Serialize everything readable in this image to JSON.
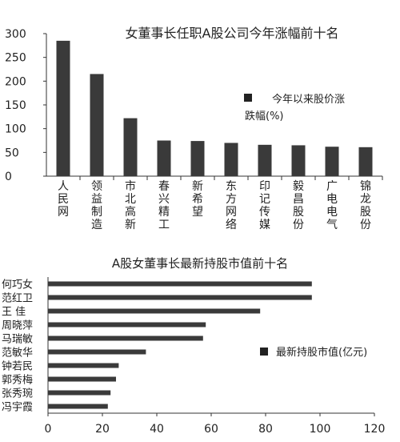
{
  "chart_data": [
    {
      "type": "bar",
      "title": "女董事长任职A股公司今年涨幅前十名",
      "legend": {
        "label": "今年以来股价涨跌幅(%)",
        "position": "right"
      },
      "xlabel": "",
      "ylabel": "",
      "ylim": [
        0,
        300
      ],
      "yticks": [
        "0",
        "50",
        "100",
        "150",
        "200",
        "250",
        "300"
      ],
      "grid": false,
      "categories": [
        "人民网",
        "领益制造",
        "市北高新",
        "春兴精工",
        "新希望",
        "东方网络",
        "印记传媒",
        "毅昌股份",
        "广电电气",
        "锦龙股份"
      ],
      "values": [
        285,
        215,
        122,
        75,
        74,
        70,
        66,
        65,
        62,
        61
      ],
      "colors": {
        "bar": "#3a3a3a",
        "text": "#222222"
      }
    },
    {
      "type": "bar",
      "orientation": "horizontal",
      "title": "A股女董事长最新持股市值前十名",
      "legend": {
        "label": "最新持股市值(亿元)",
        "position": "right"
      },
      "xlabel": "",
      "ylabel": "",
      "xlim": [
        0,
        120
      ],
      "xticks": [
        "0",
        "20",
        "40",
        "60",
        "80",
        "100",
        "120"
      ],
      "grid": false,
      "categories": [
        "何巧女",
        "范红卫",
        "王 佳",
        "周晓萍",
        "马瑞敏",
        "范敏华",
        "钟若民",
        "郭秀梅",
        "张秀琬",
        "冯宇霞"
      ],
      "values": [
        97,
        97,
        78,
        58,
        57,
        36,
        26,
        25,
        23,
        22
      ],
      "colors": {
        "bar": "#3a3a3a",
        "text": "#222222"
      }
    }
  ]
}
